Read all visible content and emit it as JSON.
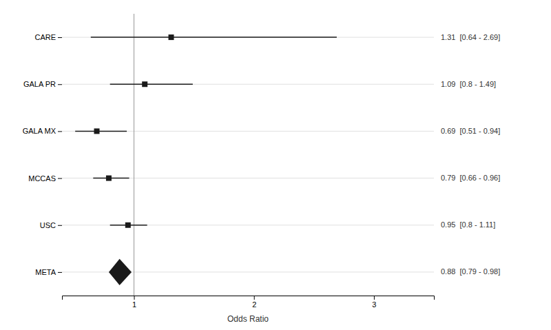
{
  "chart_data": {
    "type": "forest",
    "categories": [
      "CARE",
      "GALA PR",
      "GALA MX",
      "MCCAS",
      "USC",
      "META"
    ],
    "values": [
      1.31,
      1.09,
      0.69,
      0.79,
      0.95,
      0.88
    ],
    "ci_low": [
      0.64,
      0.8,
      0.51,
      0.66,
      0.8,
      0.79
    ],
    "ci_high": [
      2.69,
      1.49,
      0.94,
      0.96,
      1.11,
      0.98
    ],
    "data_labels": true,
    "value_labels": [
      "1.31  [0.64 - 2.69]",
      "1.09  [0.8 - 1.49]",
      "0.69  [0.51 - 0.94]",
      "0.79  [0.66 - 0.96]",
      "0.95  [0.8 - 1.11]",
      "0.88  [0.79 - 0.98]"
    ],
    "x_label": "Odds Ratio",
    "xlim": [
      0.4,
      3.5
    ],
    "xticks": [
      1,
      2,
      3
    ],
    "reference_line": 1.0,
    "grid": true,
    "marker": "square",
    "color": "#1a1a1a"
  }
}
